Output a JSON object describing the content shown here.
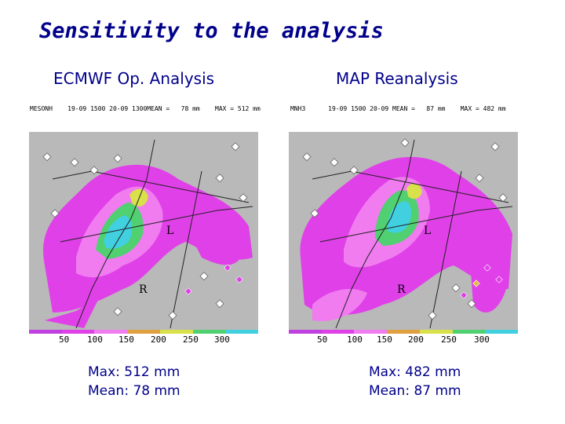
{
  "slide": {
    "title": "Sensitivity to the analysis"
  },
  "panels": [
    {
      "heading": "ECMWF Op. Analysis",
      "caption": "MESONH    19-09 1500 20-09 1300MEAN =   78 mm    MAX = 512 mm",
      "ticks": [
        "50",
        "100",
        "150",
        "200",
        "250",
        "300"
      ],
      "max_text": "Max: 512 mm",
      "mean_text": "Mean: 78 mm"
    },
    {
      "heading": "MAP Reanalysis",
      "caption": "MNH3      19-09 1500 20-09 MEAN =   87 mm    MAX = 482 mm",
      "ticks": [
        "50",
        "100",
        "150",
        "200",
        "250",
        "300"
      ],
      "max_text": "Max: 482 mm",
      "mean_text": "Mean: 87 mm"
    }
  ],
  "colors": {
    "background_map": "#b9b9b9",
    "magenta": "#e040e8",
    "pink": "#f07cf0",
    "green": "#50d070",
    "yellow": "#d8e04a",
    "cyan": "#40d0e0",
    "title_blue": "#00008b"
  }
}
